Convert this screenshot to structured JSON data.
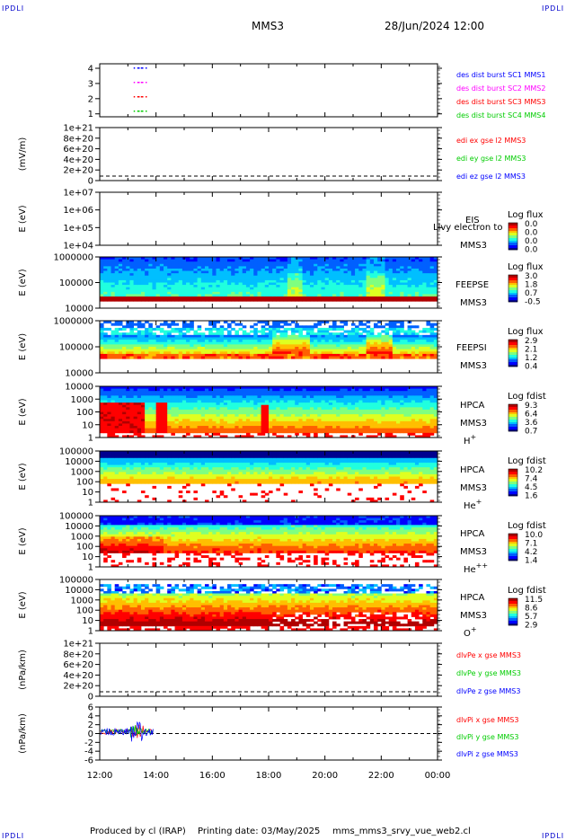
{
  "header": {
    "corner_tl": "IPDLI",
    "corner_tr": "IPDLI",
    "corner_bl": "IPDLI",
    "corner_br": "IPDLI",
    "mission": "MMS3",
    "datetime": "28/Jun/2024 12:00"
  },
  "footer": {
    "produced": "Produced by cl (IRAP)",
    "printing": "Printing date: 03/May/2025",
    "script": "mms_mms3_srvy_vue_web2.cl"
  },
  "colors": {
    "red": "#ff0000",
    "green": "#00cc00",
    "blue": "#0000ff",
    "magenta": "#ff00ff"
  },
  "chart_data": [
    {
      "type": "scatter",
      "id": "burst",
      "xlabel": "",
      "ylabel": "",
      "yticks": [
        "4",
        "3",
        "2",
        "1"
      ],
      "xlim": [
        "12:00",
        "00:00"
      ],
      "series": [
        {
          "name": "des dist burst SC1 MMS1",
          "color": "#0000ff",
          "y": 4,
          "x": [
            "13:20",
            "13:30"
          ]
        },
        {
          "name": "des dist burst SC2 MMS2",
          "color": "#ff00ff",
          "y": 3,
          "x": [
            "13:20",
            "13:30"
          ]
        },
        {
          "name": "des dist burst SC3 MMS3",
          "color": "#ff0000",
          "y": 2,
          "x": [
            "13:20",
            "13:30"
          ]
        },
        {
          "name": "des dist burst SC4 MMS4",
          "color": "#00cc00",
          "y": 1,
          "x": [
            "13:20",
            "13:30"
          ]
        }
      ]
    },
    {
      "type": "line",
      "id": "edi",
      "ylabel": "(mV/m)",
      "yticks": [
        "1e+21",
        "8e+20",
        "6e+20",
        "4e+20",
        "2e+20",
        "0"
      ],
      "series": [
        {
          "name": "edi ex gse l2 MMS3",
          "color": "#ff0000"
        },
        {
          "name": "edi ey gse l2 MMS3",
          "color": "#00cc00"
        },
        {
          "name": "edi ez gse l2 MMS3",
          "color": "#0000ff"
        }
      ]
    },
    {
      "type": "heatmap",
      "id": "eis",
      "ylabel": "E (eV)",
      "yticks": [
        "1e+07",
        "1e+06",
        "1e+05",
        "1e+04"
      ],
      "instrument": "EIS",
      "spacecraft": "MMS3",
      "overlay_text": "Llvy electron to",
      "colorbar_title": "Log flux",
      "colorbar_ticks": [
        "0.0",
        "0.0",
        "0.0",
        "0.0"
      ]
    },
    {
      "type": "heatmap",
      "id": "feepse",
      "ylabel": "E (eV)",
      "yticks": [
        "1000000",
        "100000",
        "10000"
      ],
      "instrument": "FEEPSE",
      "spacecraft": "MMS3",
      "colorbar_title": "Log flux",
      "colorbar_ticks": [
        "3.0",
        "1.8",
        "0.7",
        "-0.5"
      ]
    },
    {
      "type": "heatmap",
      "id": "feepsi",
      "ylabel": "E (eV)",
      "yticks": [
        "1000000",
        "100000",
        "10000"
      ],
      "instrument": "FEEPSI",
      "spacecraft": "MMS3",
      "colorbar_title": "Log flux",
      "colorbar_ticks": [
        "2.9",
        "2.1",
        "1.2",
        "0.4"
      ]
    },
    {
      "type": "heatmap",
      "id": "hpca_h",
      "ylabel": "E (eV)",
      "yticks": [
        "10000",
        "1000",
        "100",
        "10",
        "1"
      ],
      "instrument": "HPCA",
      "spacecraft": "MMS3",
      "species": "H",
      "charge": "+",
      "colorbar_title": "Log fdist",
      "colorbar_ticks": [
        "9.3",
        "6.4",
        "3.6",
        "0.7"
      ]
    },
    {
      "type": "heatmap",
      "id": "hpca_he",
      "ylabel": "E (eV)",
      "yticks": [
        "100000",
        "10000",
        "1000",
        "100",
        "10",
        "1"
      ],
      "instrument": "HPCA",
      "spacecraft": "MMS3",
      "species": "He",
      "charge": "+",
      "colorbar_title": "Log fdist",
      "colorbar_ticks": [
        "10.2",
        "7.4",
        "4.5",
        "1.6"
      ]
    },
    {
      "type": "heatmap",
      "id": "hpca_hepp",
      "ylabel": "E (eV)",
      "yticks": [
        "100000",
        "10000",
        "1000",
        "100",
        "10",
        "1"
      ],
      "instrument": "HPCA",
      "spacecraft": "MMS3",
      "species": "He",
      "charge": "++",
      "colorbar_title": "Log fdist",
      "colorbar_ticks": [
        "10.0",
        "7.1",
        "4.2",
        "1.4"
      ]
    },
    {
      "type": "heatmap",
      "id": "hpca_o",
      "ylabel": "E (eV)",
      "yticks": [
        "100000",
        "10000",
        "1000",
        "100",
        "10",
        "1"
      ],
      "instrument": "HPCA",
      "spacecraft": "MMS3",
      "species": "O",
      "charge": "+",
      "colorbar_title": "Log fdist",
      "colorbar_ticks": [
        "11.5",
        "8.6",
        "5.7",
        "2.9"
      ]
    },
    {
      "type": "line",
      "id": "dpe",
      "ylabel": "(nPa/km)",
      "yticks": [
        "1e+21",
        "8e+20",
        "6e+20",
        "4e+20",
        "2e+20",
        "0"
      ],
      "series": [
        {
          "name": "dlvPe x gse MMS3",
          "color": "#ff0000"
        },
        {
          "name": "dlvPe y gse MMS3",
          "color": "#00cc00"
        },
        {
          "name": "dlvPe z gse MMS3",
          "color": "#0000ff"
        }
      ]
    },
    {
      "type": "line",
      "id": "dpi",
      "ylabel": "(nPa/km)",
      "yticks": [
        "6",
        "4",
        "2",
        "0",
        "-2",
        "-4",
        "-6"
      ],
      "ylim": [
        -6,
        6
      ],
      "xticks": [
        "12:00",
        "14:00",
        "16:00",
        "18:00",
        "20:00",
        "22:00",
        "00:00"
      ],
      "series": [
        {
          "name": "dlvPi x gse MMS3",
          "color": "#ff0000"
        },
        {
          "name": "dlvPi y gse MMS3",
          "color": "#00cc00"
        },
        {
          "name": "dlvPi z gse MMS3",
          "color": "#0000ff"
        }
      ]
    }
  ]
}
